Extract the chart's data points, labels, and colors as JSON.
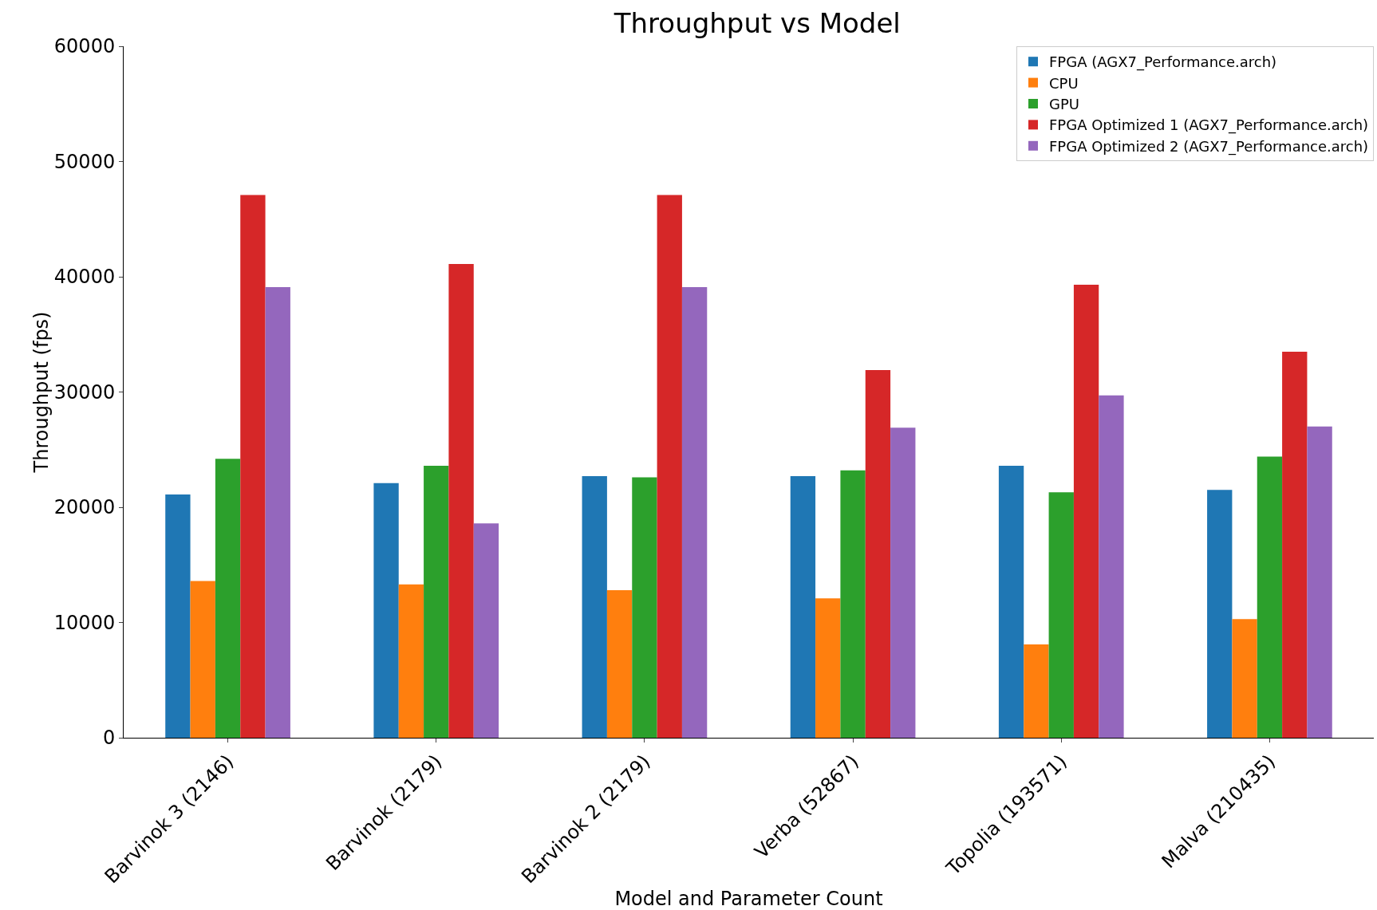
{
  "chart_data": {
    "type": "bar",
    "title": "Throughput vs Model",
    "xlabel": "Model and Parameter Count",
    "ylabel": "Throughput (fps)",
    "categories": [
      "Barvinok 3 (2146)",
      "Barvinok (2179)",
      "Barvinok 2 (2179)",
      "Verba (52867)",
      "Topolia (193571)",
      "Malva (210435)"
    ],
    "series": [
      {
        "name": "FPGA (AGX7_Performance.arch)",
        "color": "#1f77b4",
        "values": [
          21100,
          22100,
          22700,
          22700,
          23600,
          21500
        ]
      },
      {
        "name": "CPU",
        "color": "#ff7f0e",
        "values": [
          13600,
          13300,
          12800,
          12100,
          8100,
          10300
        ]
      },
      {
        "name": "GPU",
        "color": "#2ca02c",
        "values": [
          24200,
          23600,
          22600,
          23200,
          21300,
          24400
        ]
      },
      {
        "name": "FPGA Optimized 1 (AGX7_Performance.arch)",
        "color": "#d62728",
        "values": [
          47100,
          41100,
          47100,
          31900,
          39300,
          33500
        ]
      },
      {
        "name": "FPGA Optimized 2 (AGX7_Performance.arch)",
        "color": "#9467bd",
        "values": [
          39100,
          18600,
          39100,
          26900,
          29700,
          27000
        ]
      }
    ],
    "ylim": [
      0,
      60000
    ],
    "yticks": [
      0,
      10000,
      20000,
      30000,
      40000,
      50000,
      60000
    ],
    "grid": false,
    "legend": "top right"
  }
}
